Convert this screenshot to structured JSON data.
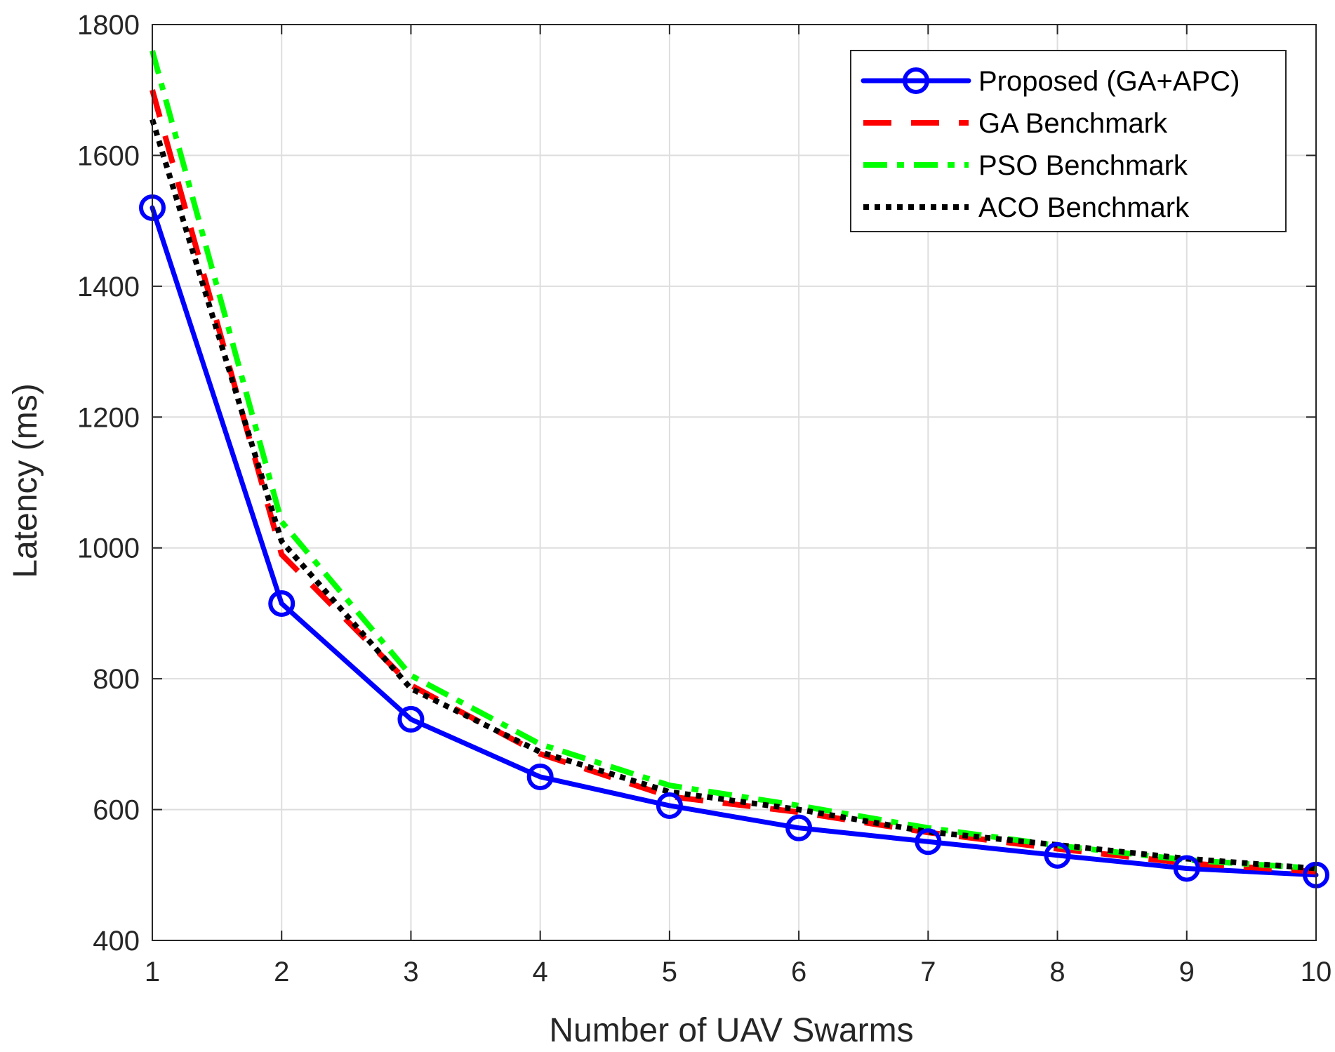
{
  "chart_data": {
    "type": "line",
    "title": "",
    "xlabel": "Number of UAV Swarms",
    "ylabel": "Latency (ms)",
    "x": [
      1,
      2,
      3,
      4,
      5,
      6,
      7,
      8,
      9,
      10
    ],
    "xlim": [
      1,
      10
    ],
    "ylim": [
      400,
      1800
    ],
    "xticks": [
      "1",
      "2",
      "3",
      "4",
      "5",
      "6",
      "7",
      "8",
      "9",
      "10"
    ],
    "yticks": [
      "400",
      "600",
      "800",
      "1000",
      "1200",
      "1400",
      "1600",
      "1800"
    ],
    "grid": true,
    "legend_position": "top-right",
    "series": [
      {
        "name": "Proposed (GA+APC)",
        "color": "#0000ff",
        "style": "solid-circle",
        "values": [
          1520,
          915,
          738,
          650,
          606,
          572,
          551,
          530,
          510,
          500
        ]
      },
      {
        "name": "GA Benchmark",
        "color": "#ff0000",
        "style": "dashed",
        "values": [
          1700,
          990,
          790,
          685,
          620,
          596,
          565,
          540,
          518,
          505
        ]
      },
      {
        "name": "PSO Benchmark",
        "color": "#00ff00",
        "style": "dash-dot",
        "values": [
          1760,
          1040,
          805,
          700,
          637,
          606,
          572,
          545,
          523,
          510
        ]
      },
      {
        "name": "ACO Benchmark",
        "color": "#000000",
        "style": "dotted",
        "values": [
          1655,
          1010,
          785,
          688,
          627,
          600,
          566,
          546,
          525,
          510
        ]
      }
    ]
  }
}
